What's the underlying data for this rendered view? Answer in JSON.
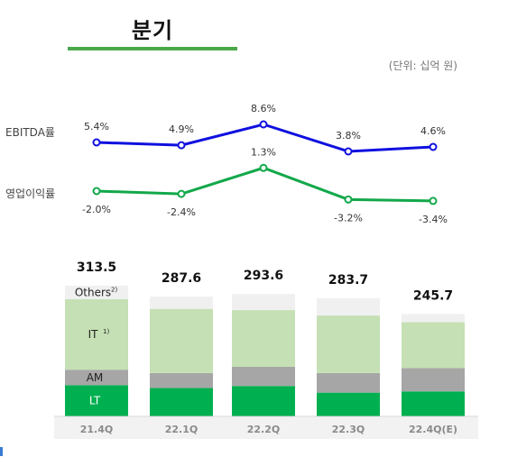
{
  "header": {
    "title": "분기",
    "unit_note": "(단위: 십억 원)"
  },
  "rows": {
    "ebitda_label": "EBITDA률",
    "op_label": "영업이익률"
  },
  "colors": {
    "ebitda_line": "#1010e0",
    "op_line": "#12a84a",
    "LT": "#00b050",
    "AM": "#a6a6a6",
    "IT": "#c5e0b4",
    "Others": "#f0f0f0",
    "title_underline": "#4aa84a"
  },
  "chart_data": [
    {
      "type": "line",
      "name": "EBITDA률",
      "x": [
        "21.4Q",
        "22.1Q",
        "22.2Q",
        "22.3Q",
        "22.4Q(E)"
      ],
      "values": [
        5.4,
        4.9,
        8.6,
        3.8,
        4.6
      ],
      "labels": [
        "5.4%",
        "4.9%",
        "8.6%",
        "3.8%",
        "4.6%"
      ]
    },
    {
      "type": "line",
      "name": "영업이익률",
      "x": [
        "21.4Q",
        "22.1Q",
        "22.2Q",
        "22.3Q",
        "22.4Q(E)"
      ],
      "values": [
        -2.0,
        -2.4,
        1.3,
        -3.2,
        -3.4
      ],
      "labels": [
        "-2.0%",
        "-2.4%",
        "1.3%",
        "-3.2%",
        "-3.4%"
      ]
    },
    {
      "type": "bar",
      "stacked": true,
      "categories": [
        "21.4Q",
        "22.1Q",
        "22.2Q",
        "22.3Q",
        "22.4Q(E)"
      ],
      "totals": [
        313.5,
        287.6,
        293.6,
        283.7,
        245.7
      ],
      "total_labels": [
        "313.5",
        "287.6",
        "293.6",
        "283.7",
        "245.7"
      ],
      "series": [
        {
          "name": "LT",
          "values": [
            75.0,
            68.0,
            73.0,
            57.0,
            60.0
          ]
        },
        {
          "name": "AM",
          "values": [
            37.0,
            36.0,
            46.0,
            47.0,
            56.0
          ]
        },
        {
          "name": "IT",
          "values": [
            169.0,
            154.0,
            136.0,
            138.0,
            110.0
          ]
        },
        {
          "name": "Others",
          "values": [
            32.5,
            29.6,
            38.6,
            41.7,
            19.7
          ]
        }
      ],
      "segment_labels": {
        "Others": "Others",
        "Others_note": "2)",
        "IT": "IT",
        "IT_note": "1)",
        "AM": "AM",
        "LT": "LT"
      }
    }
  ]
}
